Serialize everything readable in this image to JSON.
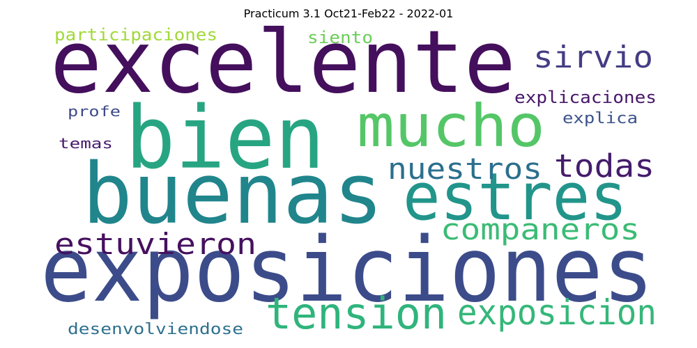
{
  "title": "Practicum 3.1 Oct21-Feb22 - 2022-01",
  "words": [
    {
      "key": "excelente",
      "text": "excelente",
      "color": "#440f5c"
    },
    {
      "key": "bien",
      "text": "bien",
      "color": "#27a582"
    },
    {
      "key": "buenas",
      "text": "buenas",
      "color": "#21858c"
    },
    {
      "key": "exposiciones",
      "text": "exposiciones",
      "color": "#3c4c8a"
    },
    {
      "key": "mucho",
      "text": "mucho",
      "color": "#55c667"
    },
    {
      "key": "estres",
      "text": "estres",
      "color": "#22958b"
    },
    {
      "key": "sirvio",
      "text": "sirvio",
      "color": "#443d84"
    },
    {
      "key": "nuestros",
      "text": "nuestros",
      "color": "#2b6f8e"
    },
    {
      "key": "todas",
      "text": "todas",
      "color": "#451c6b"
    },
    {
      "key": "companeros",
      "text": "companeros",
      "color": "#3bbb75"
    },
    {
      "key": "estuvieron",
      "text": "estuvieron",
      "color": "#46105f"
    },
    {
      "key": "tension",
      "text": "tension",
      "color": "#2fb47c"
    },
    {
      "key": "exposicion",
      "text": "exposicion",
      "color": "#35b779"
    },
    {
      "key": "participaciones",
      "text": "participaciones",
      "color": "#a2d93a"
    },
    {
      "key": "siento",
      "text": "siento",
      "color": "#6ccd5a"
    },
    {
      "key": "profe",
      "text": "profe",
      "color": "#3e4a89"
    },
    {
      "key": "temas",
      "text": "temas",
      "color": "#471b6e"
    },
    {
      "key": "explicaciones",
      "text": "explicaciones",
      "color": "#48186a"
    },
    {
      "key": "explica",
      "text": "explica",
      "color": "#3b528b"
    },
    {
      "key": "desenvolviendose",
      "text": "desenvolviendose",
      "color": "#2d708e"
    }
  ]
}
